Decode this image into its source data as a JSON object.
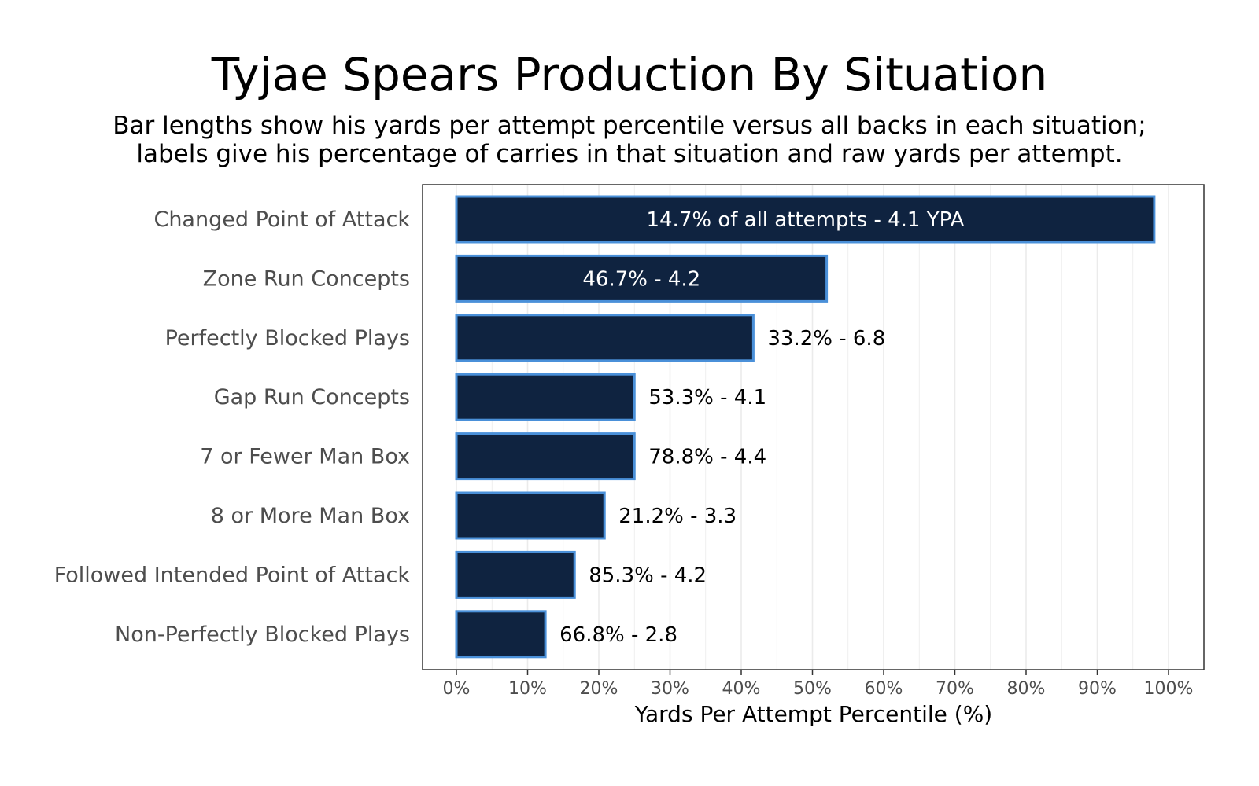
{
  "chart_data": {
    "type": "bar",
    "orientation": "horizontal",
    "title": "Tyjae Spears Production By Situation",
    "subtitle": [
      "Bar lengths show his yards per attempt percentile versus all backs in each situation;",
      "labels give his percentage of carries in that situation and raw yards per attempt."
    ],
    "xlabel": "Yards Per Attempt Percentile (%)",
    "ylabel": "",
    "xlim": [
      0,
      100
    ],
    "ticks": [
      0,
      10,
      20,
      30,
      40,
      50,
      60,
      70,
      80,
      90,
      100
    ],
    "tick_labels": [
      "0%",
      "10%",
      "20%",
      "30%",
      "40%",
      "50%",
      "60%",
      "70%",
      "80%",
      "90%",
      "100%"
    ],
    "grid": true,
    "colors": {
      "bar_fill": "#0f2340",
      "bar_outline": "#4a90d9",
      "grid": "#ebebeb",
      "panel_border": "#333333"
    },
    "categories": [
      "Changed Point of Attack",
      "Zone Run Concepts",
      "Perfectly Blocked Plays",
      "Gap Run Concepts",
      "7 or Fewer Man Box",
      "8 or More Man Box",
      "Followed Intended Point of Attack",
      "Non-Perfectly Blocked Plays"
    ],
    "values": [
      98,
      52,
      41.7,
      25,
      25,
      20.8,
      16.6,
      12.5
    ],
    "labels": [
      "14.7% of all attempts - 4.1 YPA",
      "46.7% - 4.2",
      "33.2% - 6.8",
      "53.3% - 4.1",
      "78.8% - 4.4",
      "21.2% - 3.3",
      "85.3% - 4.2",
      "66.8% - 2.8"
    ],
    "label_inside": [
      true,
      true,
      false,
      false,
      false,
      false,
      false,
      false
    ]
  }
}
